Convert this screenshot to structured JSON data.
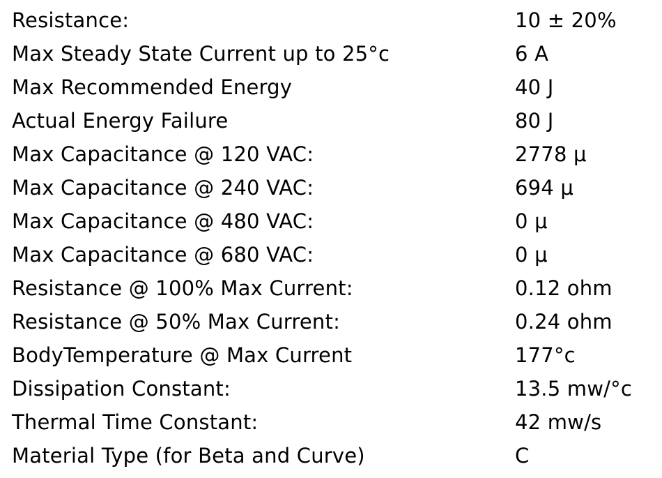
{
  "specs": [
    {
      "label": "Resistance:",
      "value": "10 ± 20%"
    },
    {
      "label": "Max Steady State Current up to 25°c",
      "value": "6 A"
    },
    {
      "label": "Max Recommended Energy",
      "value": "40 J"
    },
    {
      "label": "Actual Energy Failure",
      "value": "80 J"
    },
    {
      "label": "Max Capacitance @ 120 VAC:",
      "value": "2778 μ"
    },
    {
      "label": "Max Capacitance @ 240 VAC:",
      "value": "694 μ"
    },
    {
      "label": "Max Capacitance @ 480 VAC:",
      "value": "0 μ"
    },
    {
      "label": "Max Capacitance @ 680 VAC:",
      "value": "0 μ"
    },
    {
      "label": "Resistance @ 100% Max Current:",
      "value": "0.12 ohm"
    },
    {
      "label": "Resistance @ 50% Max Current:",
      "value": "0.24 ohm"
    },
    {
      "label": "BodyTemperature @ Max Current",
      "value": "177°c"
    },
    {
      "label": "Dissipation Constant:",
      "value": "13.5 mw/°c"
    },
    {
      "label": "Thermal Time Constant:",
      "value": "42 mw/s"
    },
    {
      "label": "Material Type (for Beta and Curve)",
      "value": "C"
    }
  ]
}
